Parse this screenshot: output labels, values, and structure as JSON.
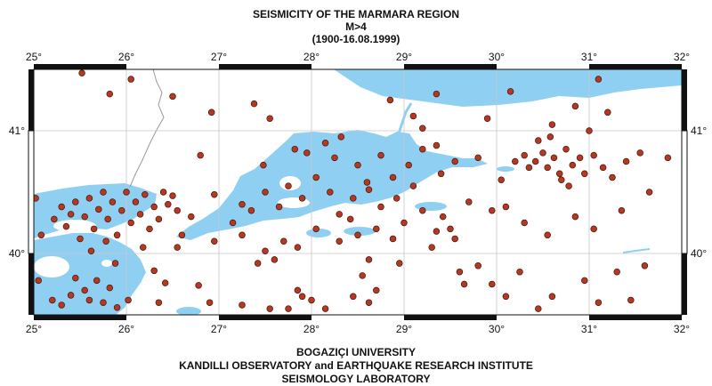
{
  "title": {
    "line1": "SEISMICITY OF THE MARMARA REGION",
    "line2": "M>4",
    "line3": "(1900-16.08.1999)"
  },
  "footer": {
    "line1": "BOGAZIÇI UNIVERSITY",
    "line2": "KANDILLI OBSERVATORY and EARTHQUAKE RESEARCH INSTITUTE",
    "line3": "SEISMOLOGY LABORATORY"
  },
  "map": {
    "lon_range": [
      25,
      32
    ],
    "lat_range": [
      39.5,
      41.5
    ],
    "lon_ticks": [
      "25°",
      "26°",
      "27°",
      "28°",
      "29°",
      "30°",
      "31°",
      "32°"
    ],
    "lat_ticks": [
      "40°",
      "41°"
    ],
    "grid": true,
    "colors": {
      "sea": "#8ecff2",
      "land": "#ffffff",
      "quake": "#b33a22",
      "frame": "#111111",
      "grid": "#c8c8c8"
    }
  },
  "quakes": [
    [
      25.52,
      41.47
    ],
    [
      26.05,
      41.42
    ],
    [
      26.5,
      41.28
    ],
    [
      25.02,
      40.45
    ],
    [
      25.08,
      40.15
    ],
    [
      25.22,
      40.28
    ],
    [
      25.3,
      40.38
    ],
    [
      25.35,
      40.22
    ],
    [
      25.4,
      40.32
    ],
    [
      25.45,
      40.42
    ],
    [
      25.5,
      40.12
    ],
    [
      25.55,
      40.3
    ],
    [
      25.6,
      40.45
    ],
    [
      25.65,
      40.2
    ],
    [
      25.7,
      40.36
    ],
    [
      25.75,
      40.5
    ],
    [
      25.8,
      40.28
    ],
    [
      25.85,
      40.42
    ],
    [
      25.9,
      40.15
    ],
    [
      25.95,
      40.35
    ],
    [
      26.0,
      40.5
    ],
    [
      26.05,
      40.25
    ],
    [
      26.1,
      40.42
    ],
    [
      26.15,
      40.32
    ],
    [
      26.2,
      40.48
    ],
    [
      26.25,
      40.2
    ],
    [
      26.3,
      40.38
    ],
    [
      26.35,
      40.28
    ],
    [
      26.4,
      40.5
    ],
    [
      26.45,
      40.4
    ],
    [
      26.5,
      40.47
    ],
    [
      26.55,
      40.35
    ],
    [
      25.62,
      40.02
    ],
    [
      25.78,
      40.1
    ],
    [
      26.18,
      40.05
    ],
    [
      25.88,
      39.92
    ],
    [
      25.45,
      39.8
    ],
    [
      25.55,
      39.7
    ],
    [
      25.6,
      39.62
    ],
    [
      25.68,
      39.78
    ],
    [
      25.75,
      39.6
    ],
    [
      25.82,
      39.72
    ],
    [
      25.9,
      39.56
    ],
    [
      25.4,
      39.66
    ],
    [
      25.3,
      39.58
    ],
    [
      25.2,
      39.62
    ],
    [
      25.05,
      39.78
    ],
    [
      26.02,
      39.62
    ],
    [
      26.3,
      39.86
    ],
    [
      26.42,
      39.76
    ],
    [
      26.55,
      40.05
    ],
    [
      26.35,
      39.6
    ],
    [
      26.8,
      40.8
    ],
    [
      26.95,
      40.48
    ],
    [
      27.25,
      40.4
    ],
    [
      27.35,
      40.35
    ],
    [
      27.5,
      40.5
    ],
    [
      27.65,
      40.38
    ],
    [
      27.75,
      40.55
    ],
    [
      27.9,
      40.45
    ],
    [
      28.05,
      40.62
    ],
    [
      28.2,
      40.5
    ],
    [
      28.3,
      40.32
    ],
    [
      28.45,
      40.45
    ],
    [
      28.62,
      40.52
    ],
    [
      28.75,
      40.38
    ],
    [
      28.92,
      40.45
    ],
    [
      28.25,
      40.78
    ],
    [
      28.15,
      40.9
    ],
    [
      27.95,
      40.82
    ],
    [
      27.82,
      40.85
    ],
    [
      27.48,
      40.72
    ],
    [
      27.55,
      41.1
    ],
    [
      28.32,
      40.95
    ],
    [
      28.5,
      40.72
    ],
    [
      28.6,
      40.58
    ],
    [
      28.75,
      40.8
    ],
    [
      28.88,
      40.62
    ],
    [
      29.05,
      40.72
    ],
    [
      29.1,
      40.55
    ],
    [
      29.2,
      40.85
    ],
    [
      29.35,
      40.88
    ],
    [
      29.4,
      40.65
    ],
    [
      29.55,
      40.75
    ],
    [
      29.8,
      40.78
    ],
    [
      30.05,
      40.6
    ],
    [
      29.35,
      41.3
    ],
    [
      29.9,
      41.1
    ],
    [
      30.15,
      41.32
    ],
    [
      30.6,
      41.05
    ],
    [
      30.85,
      41.2
    ],
    [
      31.0,
      41.0
    ],
    [
      31.1,
      41.42
    ],
    [
      31.2,
      41.15
    ],
    [
      30.2,
      40.75
    ],
    [
      30.3,
      40.8
    ],
    [
      30.35,
      40.7
    ],
    [
      30.42,
      40.75
    ],
    [
      30.5,
      40.82
    ],
    [
      30.55,
      40.7
    ],
    [
      30.62,
      40.78
    ],
    [
      30.68,
      40.65
    ],
    [
      30.75,
      40.85
    ],
    [
      30.82,
      40.72
    ],
    [
      30.9,
      40.78
    ],
    [
      30.95,
      40.65
    ],
    [
      31.05,
      40.8
    ],
    [
      31.15,
      40.7
    ],
    [
      31.25,
      40.62
    ],
    [
      31.4,
      40.75
    ],
    [
      31.55,
      40.82
    ],
    [
      31.65,
      40.5
    ],
    [
      31.85,
      40.78
    ],
    [
      30.45,
      40.92
    ],
    [
      30.58,
      40.95
    ],
    [
      30.7,
      40.6
    ],
    [
      30.78,
      40.55
    ],
    [
      29.42,
      40.3
    ],
    [
      29.5,
      40.2
    ],
    [
      29.55,
      40.12
    ],
    [
      29.35,
      40.18
    ],
    [
      29.2,
      40.35
    ],
    [
      29.0,
      40.25
    ],
    [
      28.88,
      40.12
    ],
    [
      28.7,
      40.2
    ],
    [
      28.5,
      40.15
    ],
    [
      28.3,
      40.1
    ],
    [
      28.05,
      40.2
    ],
    [
      27.85,
      40.05
    ],
    [
      27.6,
      39.95
    ],
    [
      27.5,
      40.02
    ],
    [
      27.42,
      39.92
    ],
    [
      27.7,
      40.1
    ],
    [
      28.62,
      39.95
    ],
    [
      28.55,
      39.82
    ],
    [
      28.7,
      39.7
    ],
    [
      28.62,
      39.6
    ],
    [
      28.45,
      39.65
    ],
    [
      28.15,
      39.55
    ],
    [
      28.0,
      39.62
    ],
    [
      27.85,
      39.7
    ],
    [
      27.75,
      39.55
    ],
    [
      27.9,
      39.65
    ],
    [
      27.55,
      39.55
    ],
    [
      26.9,
      39.6
    ],
    [
      26.78,
      39.74
    ],
    [
      27.25,
      39.58
    ],
    [
      29.65,
      39.75
    ],
    [
      29.6,
      39.85
    ],
    [
      29.8,
      39.9
    ],
    [
      29.95,
      39.75
    ],
    [
      30.1,
      39.65
    ],
    [
      30.25,
      39.85
    ],
    [
      30.45,
      39.55
    ],
    [
      30.6,
      39.65
    ],
    [
      30.95,
      39.78
    ],
    [
      31.1,
      39.6
    ],
    [
      31.3,
      39.85
    ],
    [
      31.45,
      39.62
    ],
    [
      31.6,
      39.9
    ],
    [
      30.1,
      40.38
    ],
    [
      30.3,
      40.25
    ],
    [
      30.55,
      40.15
    ],
    [
      30.85,
      40.3
    ],
    [
      31.05,
      40.2
    ],
    [
      31.35,
      40.35
    ],
    [
      29.7,
      40.42
    ],
    [
      29.95,
      40.35
    ],
    [
      29.3,
      40.05
    ],
    [
      28.95,
      39.92
    ],
    [
      28.42,
      40.28
    ],
    [
      27.15,
      40.25
    ],
    [
      27.25,
      40.15
    ],
    [
      26.7,
      40.3
    ],
    [
      26.6,
      40.15
    ],
    [
      26.95,
      40.1
    ],
    [
      29.1,
      41.12
    ],
    [
      29.2,
      41.02
    ],
    [
      28.85,
      41.25
    ],
    [
      27.38,
      41.22
    ],
    [
      26.92,
      41.15
    ],
    [
      25.82,
      41.3
    ]
  ]
}
